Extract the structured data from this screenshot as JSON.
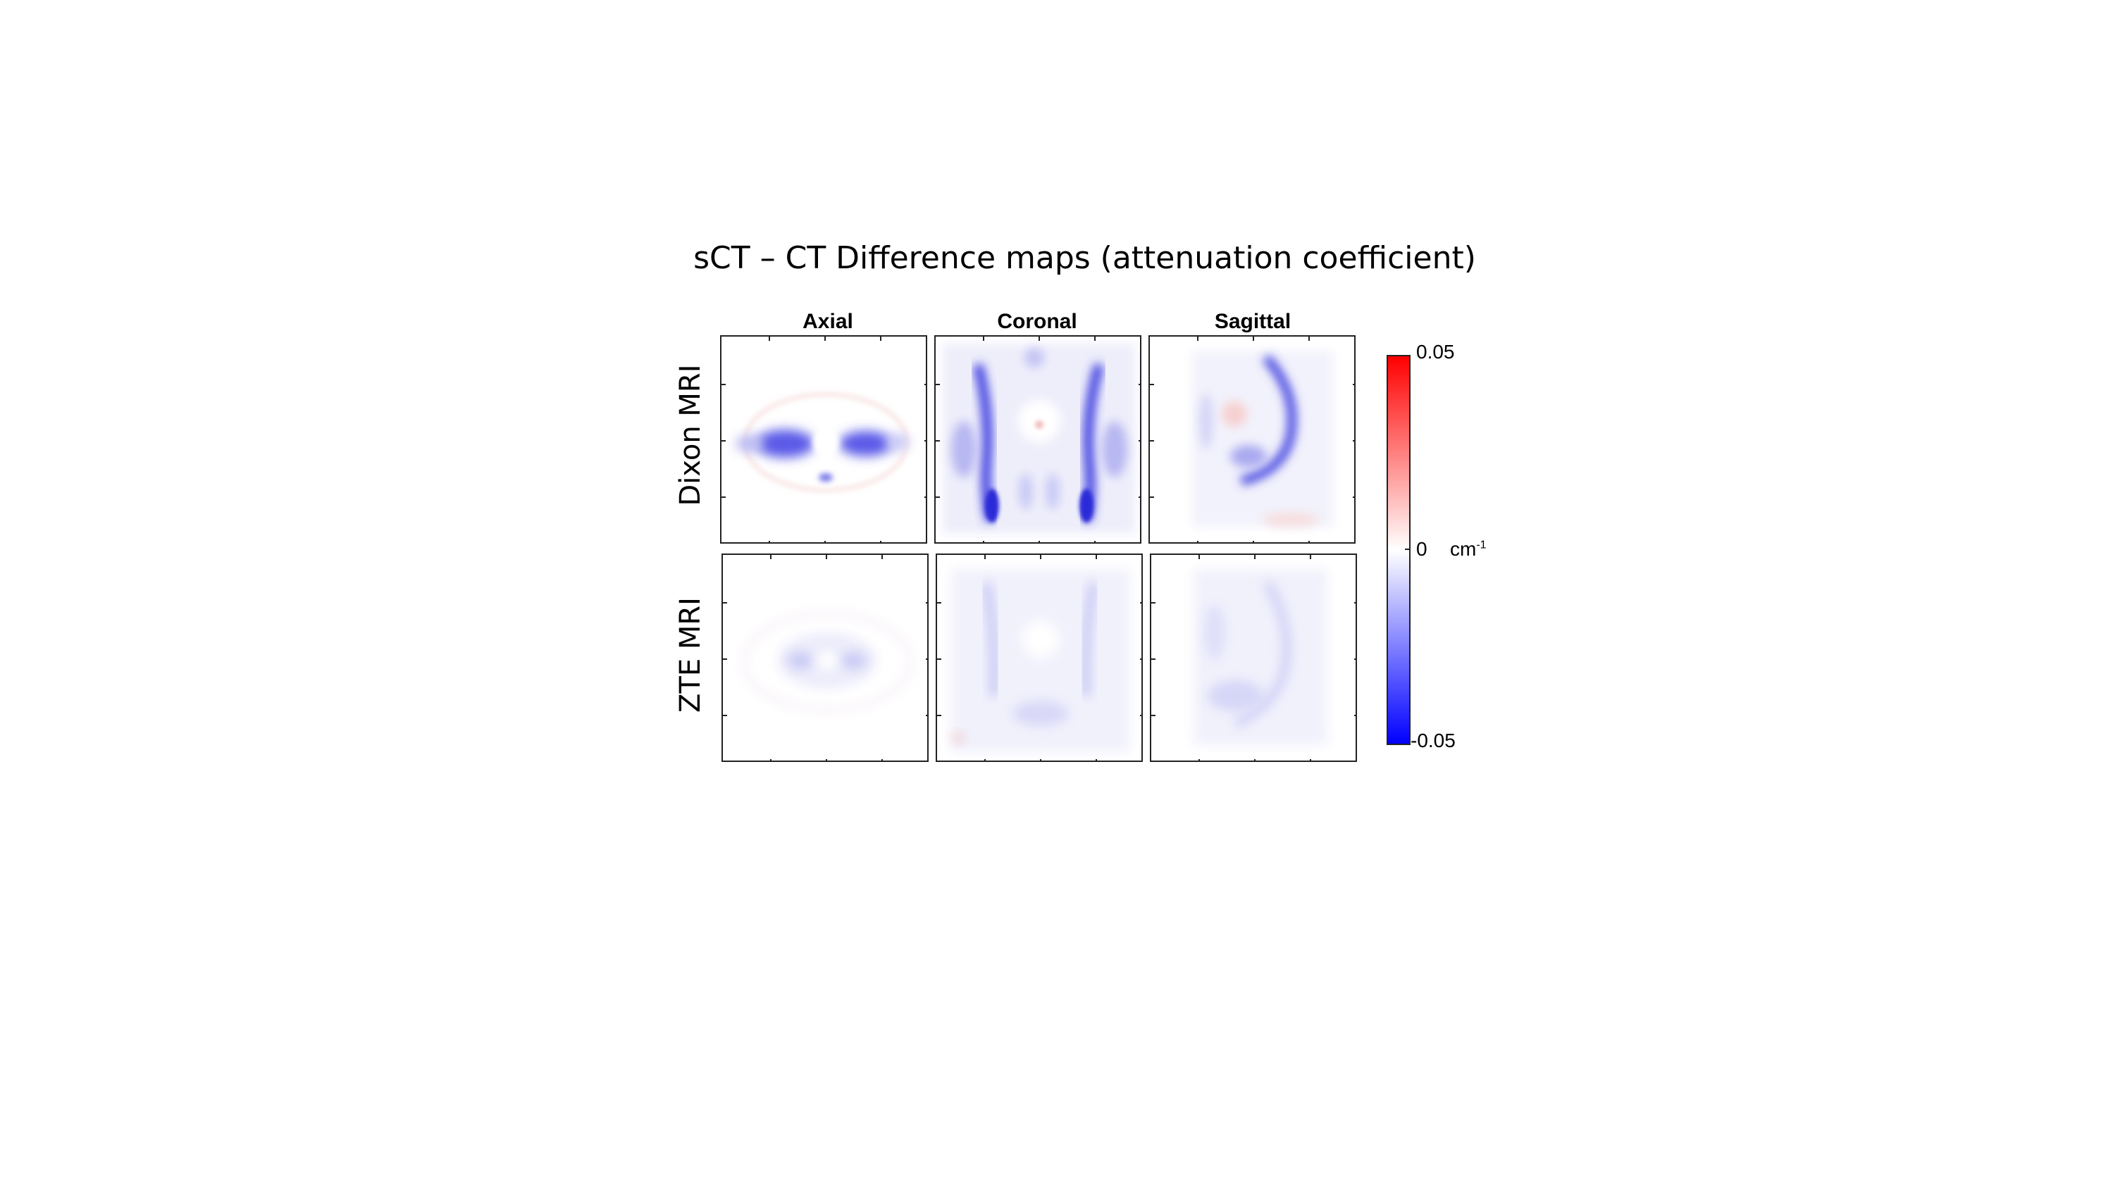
{
  "title": "sCT – CT Difference maps (attenuation coefficient)",
  "columns": [
    "Axial",
    "Coronal",
    "Sagittal"
  ],
  "rows": [
    "Dixon MRI",
    "ZTE MRI"
  ],
  "colorbar": {
    "max_label": "0.05",
    "mid_label": "0",
    "min_label": "-0.05",
    "unit_base": "cm",
    "unit_exp": "-1",
    "colors": {
      "max": "#ff0000",
      "mid": "#ffffff",
      "min": "#0000ff"
    }
  }
}
